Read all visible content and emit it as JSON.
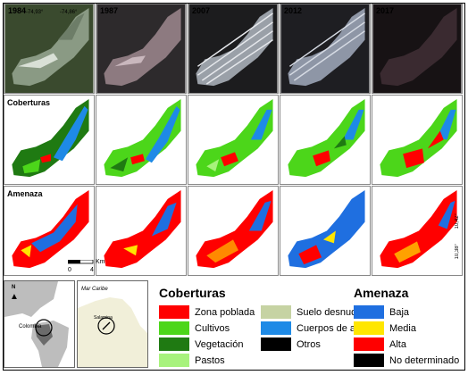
{
  "years": [
    "1984",
    "1987",
    "2007",
    "2012",
    "2017"
  ],
  "rows": {
    "coberturas": "Coberturas",
    "amenaza": "Amenaza"
  },
  "coords": {
    "lon_left": "-74,93°",
    "lon_right": "-74,86°",
    "lat_top": "10,42°",
    "lat_bottom": "10,38°"
  },
  "scale": {
    "zero": "0",
    "four": "4",
    "unit": "Km"
  },
  "inset": {
    "north": "N",
    "colombia": "Colombia",
    "mar_caribe": "Mar Caribe",
    "area_label": "Salamina"
  },
  "legend": {
    "coberturas_title": "Coberturas",
    "amenaza_title": "Amenaza",
    "coberturas_col1": [
      {
        "label": "Zona poblada",
        "color": "#ff0000"
      },
      {
        "label": "Cultivos",
        "color": "#4cd61a"
      },
      {
        "label": "Vegetación",
        "color": "#1f7a12"
      },
      {
        "label": "Pastos",
        "color": "#a7f27c"
      }
    ],
    "coberturas_col2": [
      {
        "label": "Suelo desnudo",
        "color": "#c6d3a3"
      },
      {
        "label": "Cuerpos de agua",
        "color": "#1e8ae6"
      },
      {
        "label": "Otros",
        "color": "#000000"
      }
    ],
    "amenaza_items": [
      {
        "label": "Baja",
        "color": "#1f6fe0"
      },
      {
        "label": "Media",
        "color": "#ffe600"
      },
      {
        "label": "Alta",
        "color": "#ff0000"
      },
      {
        "label": "No determinado",
        "color": "#000000"
      }
    ]
  }
}
